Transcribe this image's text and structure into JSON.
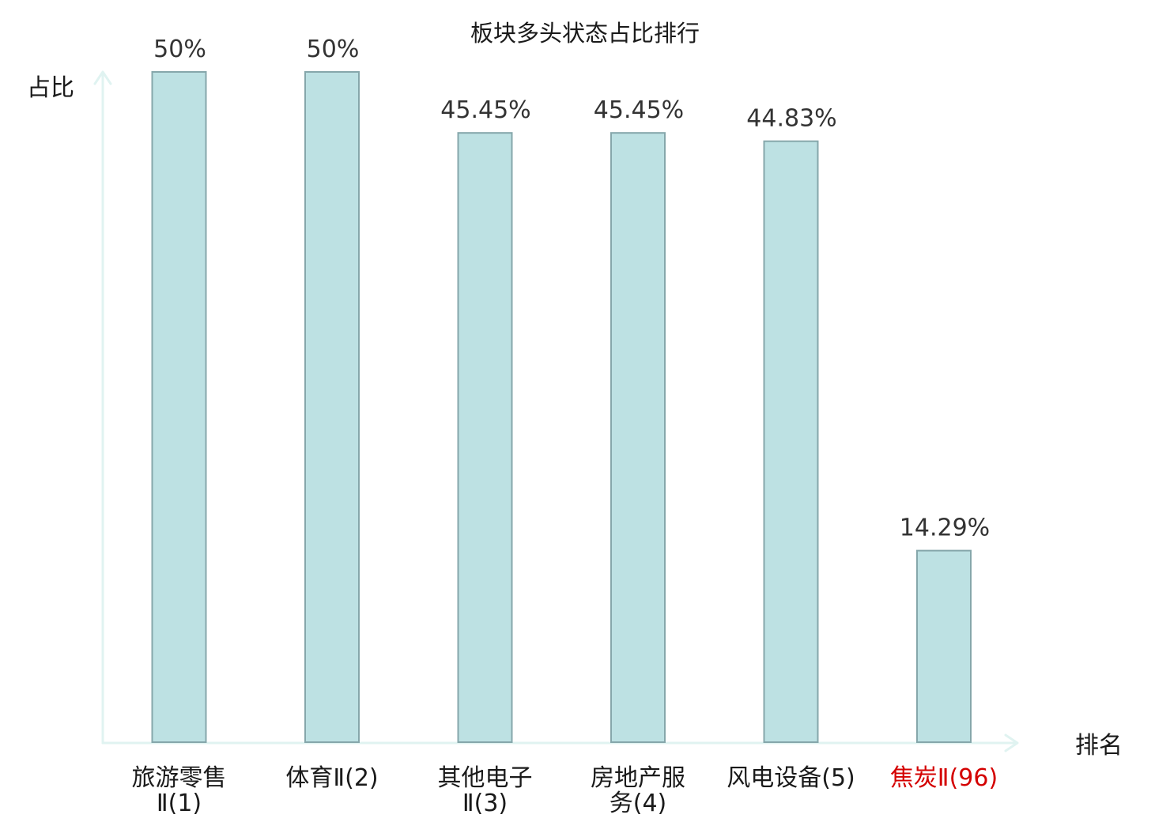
{
  "chart_data": {
    "type": "bar",
    "title": "板块多头状态占比排行",
    "ylabel": "占比",
    "xlabel": "排名",
    "unit": "%",
    "ylim": [
      0,
      50
    ],
    "grid": false,
    "legend": "none",
    "categories": [
      {
        "name": "旅游零售",
        "suffix": "Ⅱ(1)",
        "lines": [
          "旅游零售",
          "Ⅱ(1)"
        ],
        "highlight": false
      },
      {
        "name": "体育",
        "suffix": "Ⅱ(2)",
        "lines": [
          "体育Ⅱ(2)"
        ],
        "highlight": false
      },
      {
        "name": "其他电子",
        "suffix": "Ⅱ(3)",
        "lines": [
          "其他电子",
          "Ⅱ(3)"
        ],
        "highlight": false
      },
      {
        "name": "房地产服务",
        "suffix": "(4)",
        "lines": [
          "房地产服",
          "务(4)"
        ],
        "highlight": false
      },
      {
        "name": "风电设备",
        "suffix": "(5)",
        "lines": [
          "风电设备(5)"
        ],
        "highlight": false
      },
      {
        "name": "焦炭",
        "suffix": "Ⅱ(96)",
        "lines": [
          "焦炭Ⅱ(96)"
        ],
        "highlight": true
      }
    ],
    "values": [
      50,
      50,
      45.45,
      45.45,
      44.83,
      14.29
    ],
    "value_labels": [
      "50%",
      "50%",
      "45.45%",
      "45.45%",
      "44.83%",
      "14.29%"
    ]
  },
  "colors": {
    "bar_fill": "#bde1e3",
    "bar_stroke": "#86a7ab",
    "axis": "#e0f3f1",
    "text": "#1a1a1a",
    "value_text": "#333333",
    "highlight": "#d40000"
  }
}
